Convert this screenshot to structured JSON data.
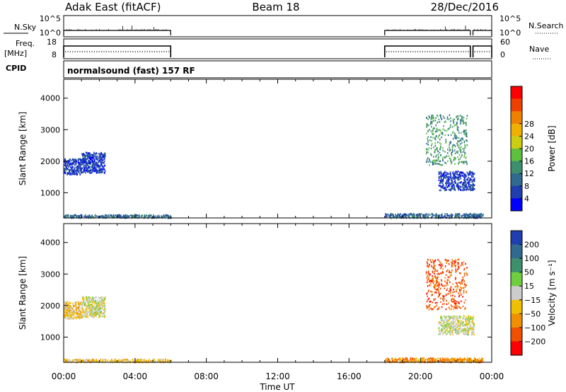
{
  "header": {
    "station": "Adak East (fitACF)",
    "beam": "Beam 18",
    "date": "28/Dec/2016"
  },
  "panels": {
    "nsky": {
      "left_label": "N.Sky",
      "right_label": "N.Search",
      "left_ticks": [
        "10^5",
        "10^0"
      ],
      "right_ticks": [
        "10^5",
        "10^0"
      ]
    },
    "freq": {
      "left_label": "Freq.",
      "left_unit": "[MHz]",
      "right_label": "Nave",
      "left_ticks": [
        "18",
        "8"
      ],
      "right_ticks": [
        "60",
        "0"
      ]
    },
    "cpid": {
      "label": "CPID",
      "text": "normalsound (fast) 157 RF"
    }
  },
  "chart_data": [
    {
      "type": "heatmap",
      "quantity": "Power",
      "ylabel": "Slant Range [km]",
      "xlabel": "Time UT",
      "xlim_hours": [
        0,
        24
      ],
      "ylim_km": [
        200,
        4600
      ],
      "x_ticks": [
        "00:00",
        "04:00",
        "08:00",
        "12:00",
        "16:00",
        "20:00",
        "00:00"
      ],
      "y_ticks": [
        "1000",
        "2000",
        "3000",
        "4000"
      ],
      "colorbar_label": "Power [dB]",
      "colorbar_ticks": [
        "4",
        "8",
        "12",
        "16",
        "20",
        "24",
        "28"
      ],
      "colorbar_colors": [
        "#0000ff",
        "#1f3fb0",
        "#2f6a90",
        "#3e8f6e",
        "#5fbf3f",
        "#cccc10",
        "#f0b000",
        "#f08000",
        "#f04000",
        "#ff0000"
      ],
      "echo_regions": [
        {
          "t": [
            0.0,
            1.0
          ],
          "r": [
            1600,
            2100
          ],
          "level": 1
        },
        {
          "t": [
            1.0,
            2.3
          ],
          "r": [
            1650,
            2300
          ],
          "level": 1
        },
        {
          "t": [
            0.0,
            6.0
          ],
          "r": [
            220,
            320
          ],
          "level": 2
        },
        {
          "t": [
            18.0,
            23.5
          ],
          "r": [
            220,
            360
          ],
          "level": 2
        },
        {
          "t": [
            21.0,
            23.0
          ],
          "r": [
            1100,
            1700
          ],
          "level": 1
        },
        {
          "t": [
            20.3,
            22.6
          ],
          "r": [
            1900,
            3500
          ],
          "level": 3
        }
      ]
    },
    {
      "type": "heatmap",
      "quantity": "Velocity",
      "ylabel": "Slant Range [km]",
      "xlabel": "Time UT",
      "xlim_hours": [
        0,
        24
      ],
      "ylim_km": [
        200,
        4600
      ],
      "x_ticks": [
        "00:00",
        "04:00",
        "08:00",
        "12:00",
        "16:00",
        "20:00",
        "00:00"
      ],
      "y_ticks": [
        "1000",
        "2000",
        "3000",
        "4000"
      ],
      "colorbar_label": "Velocity [m s⁻¹]",
      "colorbar_ticks": [
        "200",
        "100",
        "50",
        "15",
        "−15",
        "−50",
        "−100",
        "−200"
      ],
      "colorbar_colors": [
        "#1f3fb0",
        "#2f6a90",
        "#3e8f6e",
        "#6fcf3f",
        "#cccccc",
        "#f0c000",
        "#f09000",
        "#f05000",
        "#ff0000"
      ],
      "echo_regions": [
        {
          "t": [
            0.0,
            1.0
          ],
          "r": [
            1600,
            2150
          ],
          "level": 5
        },
        {
          "t": [
            1.0,
            2.3
          ],
          "r": [
            1650,
            2300
          ],
          "level": 4
        },
        {
          "t": [
            0.0,
            6.0
          ],
          "r": [
            220,
            320
          ],
          "level": 5
        },
        {
          "t": [
            18.0,
            23.5
          ],
          "r": [
            220,
            360
          ],
          "level": 6
        },
        {
          "t": [
            21.0,
            23.0
          ],
          "r": [
            1100,
            1700
          ],
          "level": 4
        },
        {
          "t": [
            20.3,
            22.6
          ],
          "r": [
            1900,
            3500
          ],
          "level": 7
        }
      ]
    }
  ],
  "data_coverage": [
    {
      "t": [
        0.0,
        6.0
      ]
    },
    {
      "t": [
        18.0,
        22.8
      ]
    },
    {
      "t": [
        22.95,
        24.0
      ]
    }
  ]
}
